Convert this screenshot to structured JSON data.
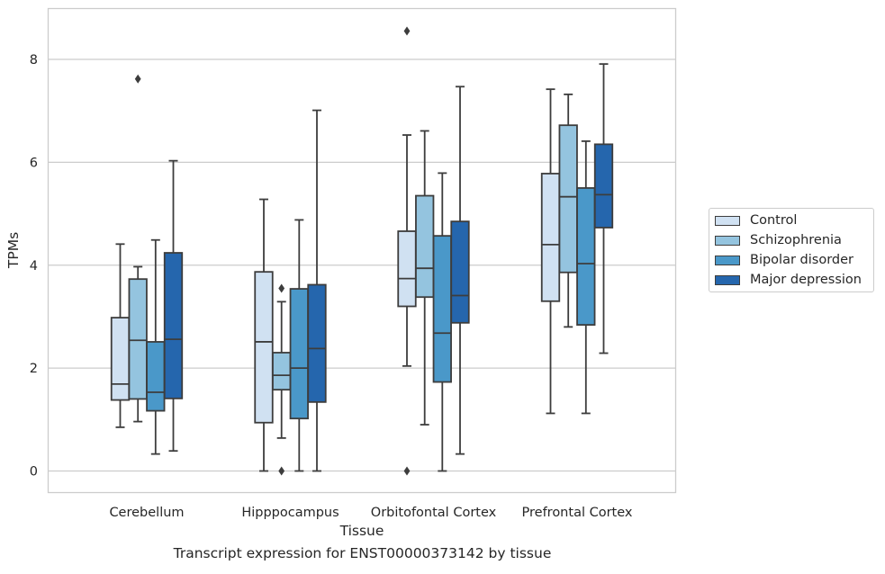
{
  "caption": "Transcript expression for ENST00000373142 by tissue",
  "chart_data": {
    "type": "box",
    "title": "",
    "xlabel": "Tissue",
    "ylabel": "TPMs",
    "ylim": [
      -0.4,
      9.0
    ],
    "yticks": [
      0,
      2,
      4,
      6,
      8
    ],
    "grid": "horizontal",
    "legend_position": "right",
    "categories": [
      "Cerebellum",
      "Hipppocampus",
      "Orbitofontal Cortex",
      "Prefrontal Cortex"
    ],
    "series": [
      {
        "name": "Control",
        "color": "#d0e1f2",
        "boxes": [
          {
            "whislo": 0.85,
            "q1": 1.38,
            "med": 1.69,
            "q3": 2.98,
            "whishi": 4.41,
            "fliers": []
          },
          {
            "whislo": 0.0,
            "q1": 0.94,
            "med": 2.51,
            "q3": 3.87,
            "whishi": 5.28,
            "fliers": []
          },
          {
            "whislo": 2.04,
            "q1": 3.2,
            "med": 3.74,
            "q3": 4.66,
            "whishi": 6.53,
            "fliers": [
              8.55,
              0.0
            ]
          },
          {
            "whislo": 1.12,
            "q1": 3.3,
            "med": 4.4,
            "q3": 5.78,
            "whishi": 7.42,
            "fliers": []
          }
        ]
      },
      {
        "name": "Schizophrenia",
        "color": "#94c4df",
        "boxes": [
          {
            "whislo": 0.96,
            "q1": 1.4,
            "med": 2.54,
            "q3": 3.73,
            "whishi": 3.97,
            "fliers": [
              7.62
            ]
          },
          {
            "whislo": 0.64,
            "q1": 1.58,
            "med": 1.86,
            "q3": 2.3,
            "whishi": 3.29,
            "fliers": [
              3.55,
              0.0
            ]
          },
          {
            "whislo": 0.9,
            "q1": 3.38,
            "med": 3.94,
            "q3": 5.35,
            "whishi": 6.61,
            "fliers": []
          },
          {
            "whislo": 2.8,
            "q1": 3.86,
            "med": 5.33,
            "q3": 6.72,
            "whishi": 7.32,
            "fliers": []
          }
        ]
      },
      {
        "name": "Bipolar disorder",
        "color": "#4a98c9",
        "boxes": [
          {
            "whislo": 0.33,
            "q1": 1.17,
            "med": 1.53,
            "q3": 2.51,
            "whishi": 4.49,
            "fliers": []
          },
          {
            "whislo": 0.0,
            "q1": 1.02,
            "med": 2.0,
            "q3": 3.54,
            "whishi": 4.88,
            "fliers": []
          },
          {
            "whislo": 0.0,
            "q1": 1.73,
            "med": 2.68,
            "q3": 4.57,
            "whishi": 5.79,
            "fliers": []
          },
          {
            "whislo": 1.12,
            "q1": 2.84,
            "med": 4.03,
            "q3": 5.5,
            "whishi": 6.41,
            "fliers": []
          }
        ]
      },
      {
        "name": "Major depression",
        "color": "#2566ad",
        "boxes": [
          {
            "whislo": 0.39,
            "q1": 1.41,
            "med": 2.56,
            "q3": 4.24,
            "whishi": 6.03,
            "fliers": []
          },
          {
            "whislo": 0.0,
            "q1": 1.34,
            "med": 2.38,
            "q3": 3.62,
            "whishi": 7.01,
            "fliers": []
          },
          {
            "whislo": 0.33,
            "q1": 2.88,
            "med": 3.41,
            "q3": 4.85,
            "whishi": 7.47,
            "fliers": []
          },
          {
            "whislo": 2.29,
            "q1": 4.73,
            "med": 5.37,
            "q3": 6.35,
            "whishi": 7.91,
            "fliers": []
          }
        ]
      }
    ]
  }
}
